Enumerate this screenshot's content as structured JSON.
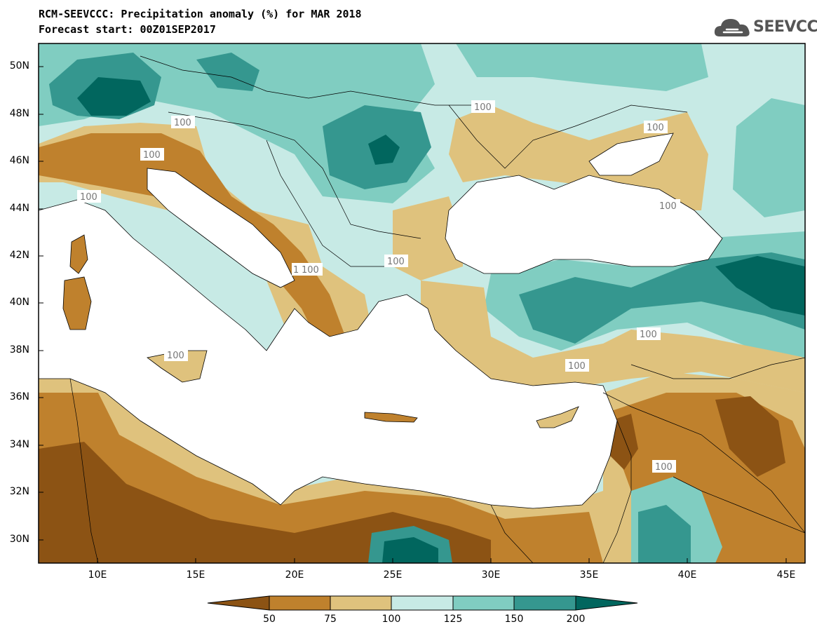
{
  "header": {
    "title": "RCM-SEEVCCC: Precipitation anomaly (%) for MAR 2018",
    "subtitle": "Forecast start: 00Z01SEP2017"
  },
  "logo": {
    "icon": "cloud-logo-icon",
    "text": "SEEVCCC"
  },
  "map": {
    "lat_range": [
      29,
      51
    ],
    "lon_range": [
      7,
      46
    ],
    "lat_ticks": [
      "30N",
      "32N",
      "34N",
      "36N",
      "38N",
      "40N",
      "42N",
      "44N",
      "46N",
      "48N",
      "50N"
    ],
    "lon_ticks": [
      "10E",
      "15E",
      "20E",
      "25E",
      "30E",
      "35E",
      "40E",
      "45E"
    ],
    "contour_labels": [
      "100",
      "100",
      "100",
      "100",
      "100",
      "100",
      "100",
      "100",
      "100",
      "100",
      "100",
      "100",
      "100"
    ]
  },
  "colorbar": {
    "levels": [
      "50",
      "75",
      "100",
      "125",
      "150",
      "200"
    ],
    "colors": [
      "#8c5314",
      "#bf812d",
      "#dfc27d",
      "#c7eae5",
      "#80cdc1",
      "#35978f",
      "#01665e"
    ]
  }
}
